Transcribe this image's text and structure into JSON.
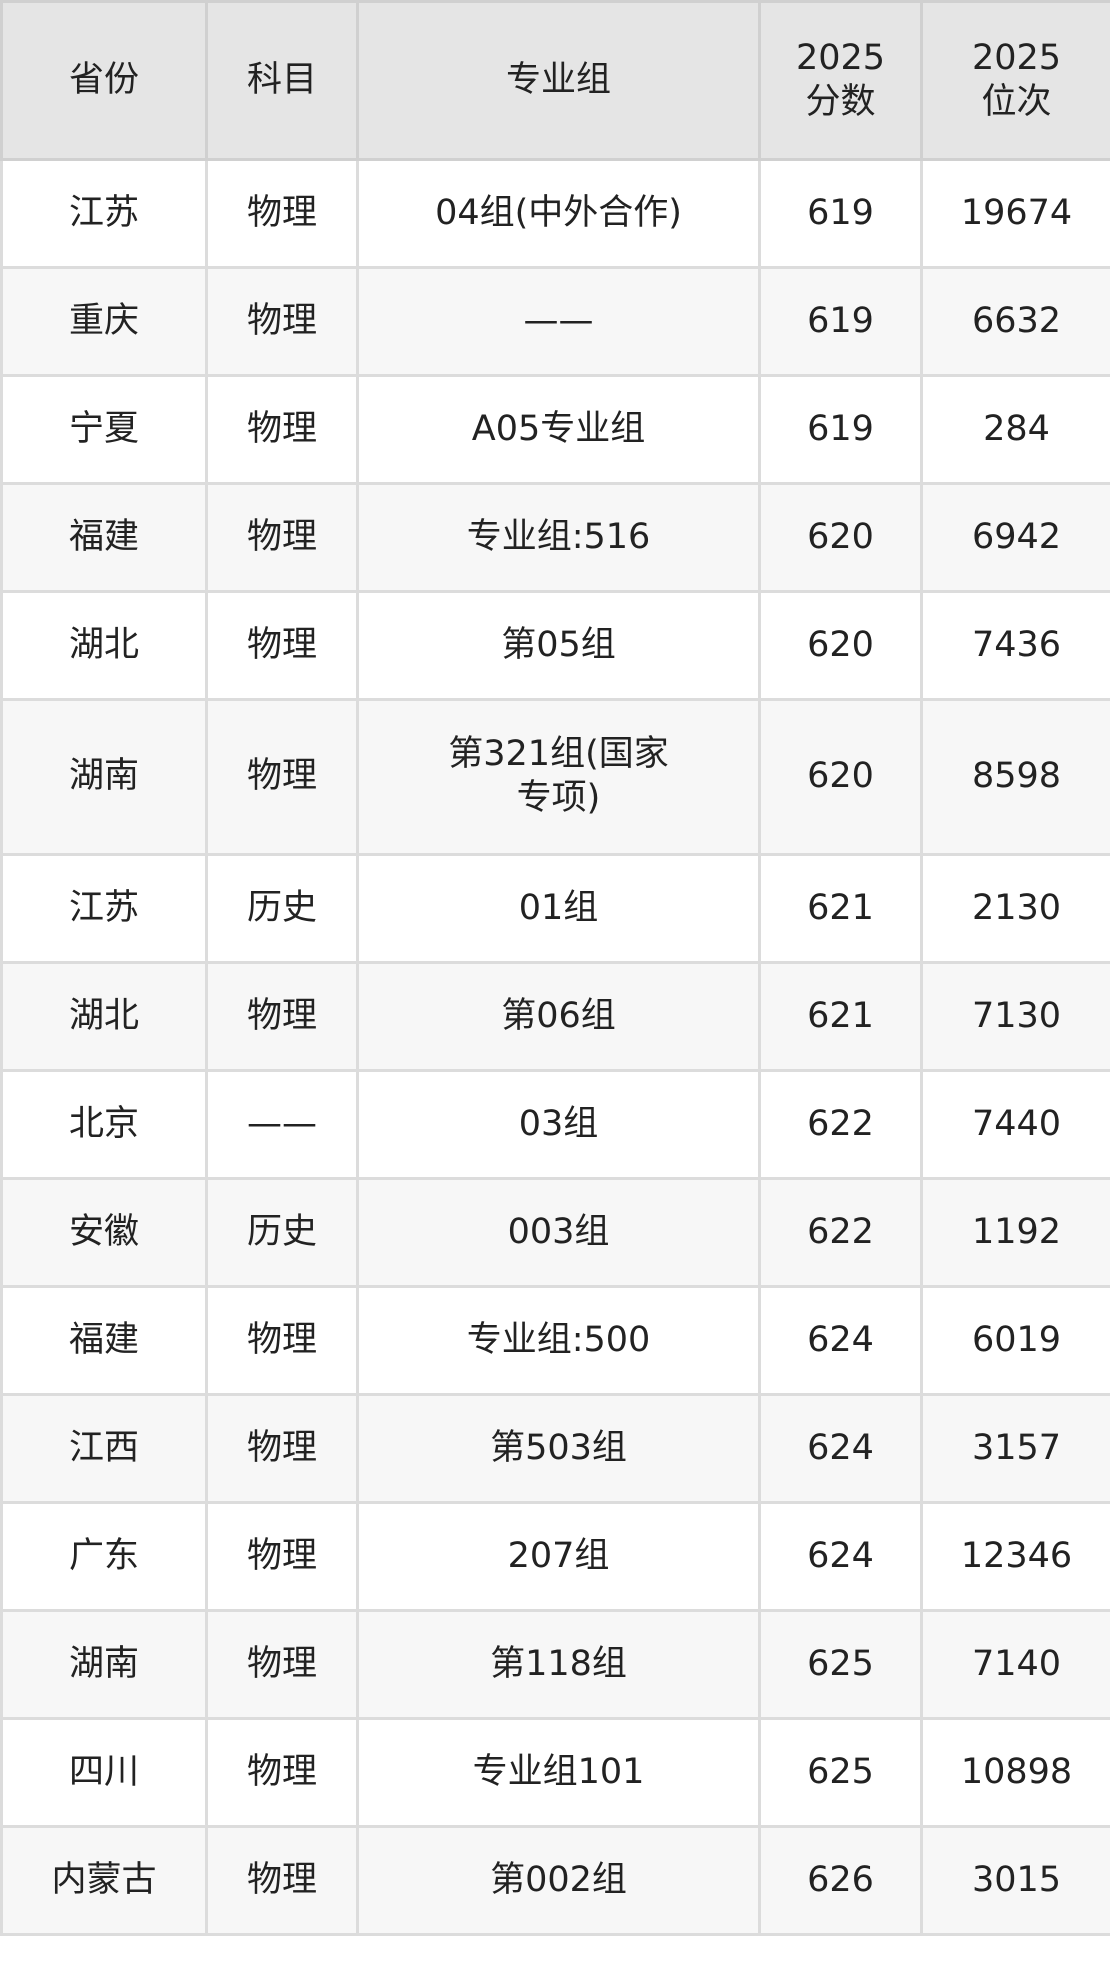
{
  "table": {
    "headers": [
      "省份",
      "科目",
      "专业组",
      "2025\n分数",
      "2025\n位次"
    ],
    "rows": [
      [
        "江苏",
        "物理",
        "04组(中外合作)",
        "619",
        "19674"
      ],
      [
        "重庆",
        "物理",
        "——",
        "619",
        "6632"
      ],
      [
        "宁夏",
        "物理",
        "A05专业组",
        "619",
        "284"
      ],
      [
        "福建",
        "物理",
        "专业组:516",
        "620",
        "6942"
      ],
      [
        "湖北",
        "物理",
        "第05组",
        "620",
        "7436"
      ],
      [
        "湖南",
        "物理",
        "第321组(国家专项)",
        "620",
        "8598"
      ],
      [
        "江苏",
        "历史",
        "01组",
        "621",
        "2130"
      ],
      [
        "湖北",
        "物理",
        "第06组",
        "621",
        "7130"
      ],
      [
        "北京",
        "——",
        "03组",
        "622",
        "7440"
      ],
      [
        "安徽",
        "历史",
        "003组",
        "622",
        "1192"
      ],
      [
        "福建",
        "物理",
        "专业组:500",
        "624",
        "6019"
      ],
      [
        "江西",
        "物理",
        "第503组",
        "624",
        "3157"
      ],
      [
        "广东",
        "物理",
        "207组",
        "624",
        "12346"
      ],
      [
        "湖南",
        "物理",
        "第118组",
        "625",
        "7140"
      ],
      [
        "四川",
        "物理",
        "专业组101",
        "625",
        "10898"
      ],
      [
        "内蒙古",
        "物理",
        "第002组",
        "626",
        "3015"
      ]
    ]
  }
}
